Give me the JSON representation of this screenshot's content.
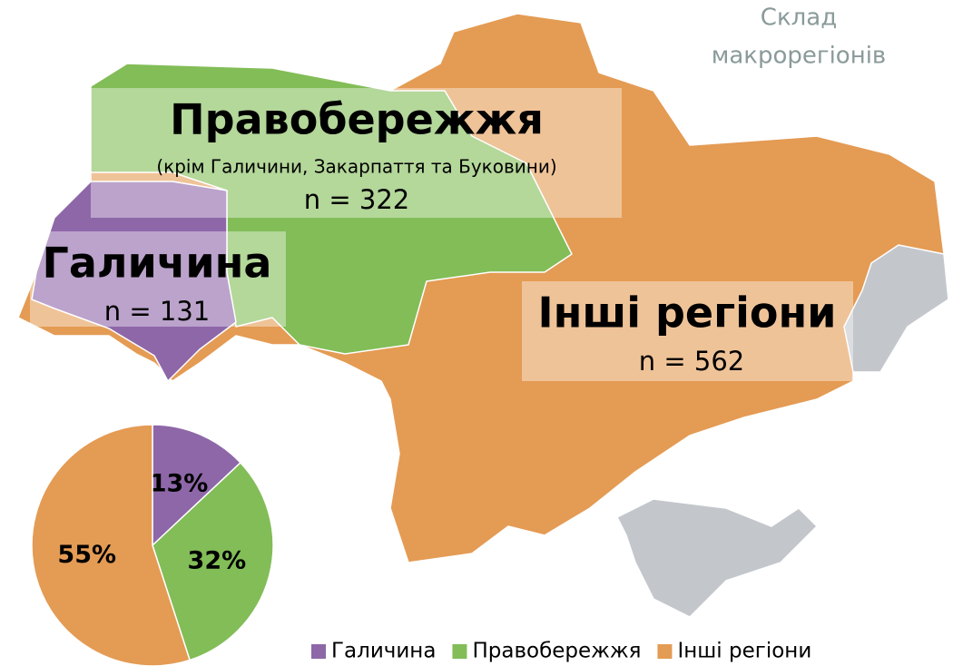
{
  "title": [
    "Склад",
    "макрорегіонів"
  ],
  "regions": [
    {
      "name": "Правобережжя",
      "note": "(крім Галичини, Закарпаття та Буковини)",
      "count_label": "n = 322"
    },
    {
      "name": "Галичина",
      "count_label": "n = 131"
    },
    {
      "name": "Інші регіони",
      "count_label": "n = 562"
    }
  ],
  "chart_data": {
    "type": "pie",
    "categories": [
      "Галичина",
      "Правобережжя",
      "Інші регіони"
    ],
    "values": [
      13,
      32,
      55
    ],
    "value_labels": [
      "13%",
      "32%",
      "55%"
    ],
    "colors": [
      "#8e67a8",
      "#82bd57",
      "#e49b54"
    ],
    "legend": "bottom-right"
  }
}
